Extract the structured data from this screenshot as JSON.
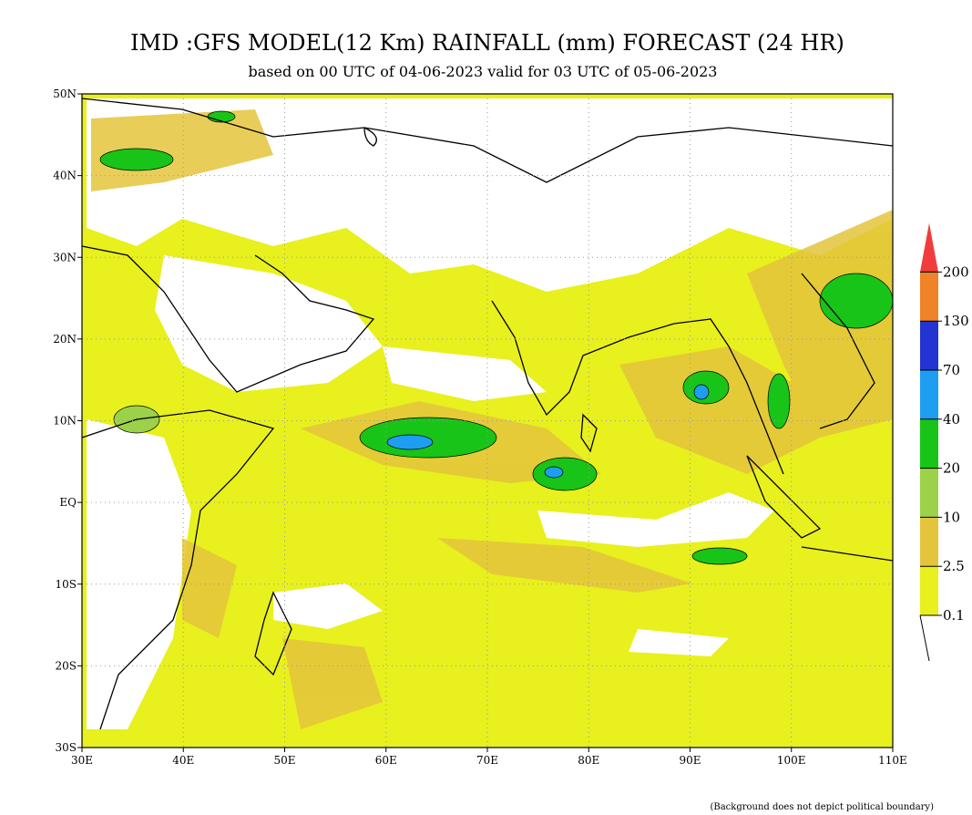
{
  "title": "IMD :GFS MODEL(12 Km) RAINFALL (mm) FORECAST (24 HR)",
  "subtitle": "based on 00 UTC of 04-06-2023 valid for 03 UTC of 05-06-2023",
  "lat_labels": [
    "50N",
    "40N",
    "30N",
    "20N",
    "10N",
    "EQ",
    "10S",
    "20S",
    "30S"
  ],
  "lon_labels": [
    "30E",
    "40E",
    "50E",
    "60E",
    "70E",
    "80E",
    "90E",
    "100E",
    "110E"
  ],
  "legend": {
    "labels": [
      "0.1",
      "2.5",
      "10",
      "20",
      "40",
      "70",
      "130",
      "200"
    ],
    "colors": [
      "#e8f01e",
      "#e4c43c",
      "#9cd24a",
      "#18c418",
      "#1e9ef0",
      "#2434d2",
      "#f08228",
      "#f03c3c"
    ]
  },
  "footnote": "(Background does not depict political boundary)"
}
